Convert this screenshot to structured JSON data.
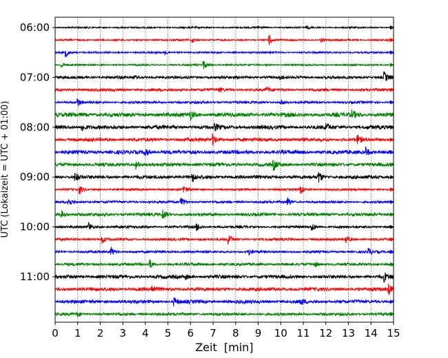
{
  "chart_data": {
    "type": "line",
    "title": "",
    "xlabel": "Zeit  [min]",
    "ylabel": "UTC (Lokalzeit = UTC + 01:00)",
    "xlim": [
      0,
      15
    ],
    "xticks": [
      0,
      1,
      2,
      3,
      4,
      5,
      6,
      7,
      8,
      9,
      10,
      11,
      12,
      13,
      14,
      15
    ],
    "x_gridlines": "dotted vertical at every minute",
    "line_interval_minutes": 15,
    "y_ticks": [
      "06:00",
      "07:00",
      "08:00",
      "09:00",
      "10:00",
      "11:00"
    ],
    "color_cycle": [
      "#000000",
      "#ff0000",
      "#0000ff",
      "#008000"
    ],
    "traces": [
      {
        "start": "06:00",
        "noise": 0.9,
        "events": [
          [
            9.0,
            2.0
          ],
          [
            11.2,
            1.6
          ]
        ]
      },
      {
        "start": "06:15",
        "noise": 1.0,
        "events": [
          [
            6.1,
            3.0
          ],
          [
            9.5,
            7.0
          ],
          [
            11.8,
            2.5
          ]
        ]
      },
      {
        "start": "06:30",
        "noise": 1.0,
        "events": [
          [
            0.5,
            6.0
          ],
          [
            4.9,
            3.0
          ]
        ]
      },
      {
        "start": "06:45",
        "noise": 1.0,
        "events": [
          [
            0.3,
            4.0
          ],
          [
            6.6,
            6.0
          ]
        ]
      },
      {
        "start": "07:00",
        "noise": 1.6,
        "events": [
          [
            3.5,
            2.0
          ],
          [
            10.0,
            2.0
          ],
          [
            14.6,
            7.0
          ]
        ]
      },
      {
        "start": "07:15",
        "noise": 1.6,
        "events": [
          [
            7.3,
            2.5
          ],
          [
            9.4,
            3.0
          ]
        ]
      },
      {
        "start": "07:30",
        "noise": 1.4,
        "events": [
          [
            1.0,
            6.0
          ],
          [
            10.0,
            5.0
          ]
        ]
      },
      {
        "start": "07:45",
        "noise": 2.4,
        "events": [
          [
            6.0,
            6.0
          ],
          [
            13.2,
            5.0
          ]
        ]
      },
      {
        "start": "08:00",
        "noise": 2.2,
        "events": [
          [
            1.2,
            6.0
          ],
          [
            7.1,
            4.0
          ],
          [
            12.0,
            6.0
          ]
        ]
      },
      {
        "start": "08:15",
        "noise": 2.0,
        "events": [
          [
            7.0,
            7.0
          ],
          [
            13.4,
            6.0
          ]
        ]
      },
      {
        "start": "08:30",
        "noise": 2.2,
        "events": [
          [
            4.0,
            6.0
          ],
          [
            13.8,
            6.0
          ]
        ]
      },
      {
        "start": "08:45",
        "noise": 2.0,
        "events": [
          [
            3.6,
            6.0
          ],
          [
            9.7,
            7.0
          ]
        ]
      },
      {
        "start": "09:00",
        "noise": 2.0,
        "events": [
          [
            0.9,
            6.0
          ],
          [
            6.1,
            5.0
          ],
          [
            11.7,
            7.0
          ]
        ]
      },
      {
        "start": "09:15",
        "noise": 1.2,
        "events": [
          [
            1.1,
            6.0
          ],
          [
            5.7,
            6.0
          ],
          [
            10.9,
            5.0
          ]
        ]
      },
      {
        "start": "09:30",
        "noise": 1.4,
        "events": [
          [
            0.6,
            6.0
          ],
          [
            5.6,
            7.0
          ],
          [
            10.3,
            7.0
          ]
        ]
      },
      {
        "start": "09:45",
        "noise": 1.8,
        "events": [
          [
            0.3,
            5.0
          ],
          [
            4.8,
            7.0
          ]
        ]
      },
      {
        "start": "10:00",
        "noise": 1.4,
        "events": [
          [
            1.5,
            6.0
          ],
          [
            6.3,
            5.0
          ],
          [
            11.4,
            6.0
          ]
        ]
      },
      {
        "start": "10:15",
        "noise": 1.4,
        "events": [
          [
            2.1,
            5.0
          ],
          [
            7.7,
            7.0
          ],
          [
            12.9,
            6.0
          ]
        ]
      },
      {
        "start": "10:30",
        "noise": 1.4,
        "events": [
          [
            2.5,
            6.0
          ],
          [
            8.6,
            5.0
          ],
          [
            13.9,
            5.0
          ]
        ]
      },
      {
        "start": "10:45",
        "noise": 1.6,
        "events": [
          [
            4.2,
            6.0
          ],
          [
            11.5,
            4.0
          ]
        ]
      },
      {
        "start": "11:00",
        "noise": 2.0,
        "events": [
          [
            5.8,
            3.0
          ],
          [
            14.6,
            6.0
          ]
        ]
      },
      {
        "start": "11:15",
        "noise": 2.0,
        "events": [
          [
            4.3,
            5.0
          ],
          [
            14.8,
            7.0
          ]
        ]
      },
      {
        "start": "11:30",
        "noise": 2.0,
        "events": [
          [
            5.3,
            5.0
          ],
          [
            10.9,
            4.0
          ]
        ]
      },
      {
        "start": "11:45",
        "noise": 1.6,
        "events": [
          [
            1.0,
            3.0
          ]
        ]
      }
    ]
  }
}
